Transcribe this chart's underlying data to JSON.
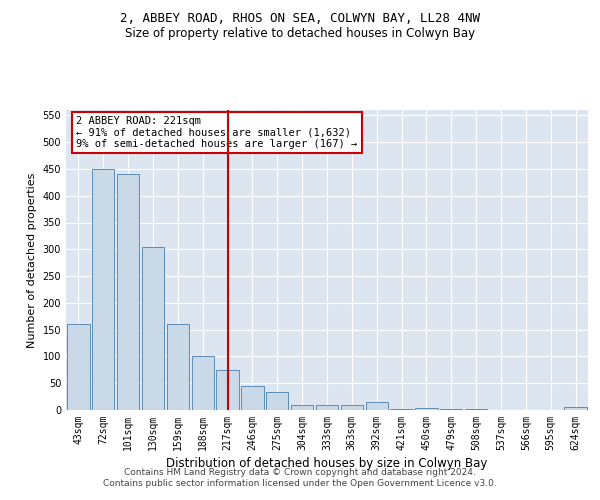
{
  "title": "2, ABBEY ROAD, RHOS ON SEA, COLWYN BAY, LL28 4NW",
  "subtitle": "Size of property relative to detached houses in Colwyn Bay",
  "xlabel": "Distribution of detached houses by size in Colwyn Bay",
  "ylabel": "Number of detached properties",
  "categories": [
    "43sqm",
    "72sqm",
    "101sqm",
    "130sqm",
    "159sqm",
    "188sqm",
    "217sqm",
    "246sqm",
    "275sqm",
    "304sqm",
    "333sqm",
    "363sqm",
    "392sqm",
    "421sqm",
    "450sqm",
    "479sqm",
    "508sqm",
    "537sqm",
    "566sqm",
    "595sqm",
    "624sqm"
  ],
  "values": [
    160,
    450,
    440,
    305,
    160,
    100,
    75,
    45,
    33,
    10,
    10,
    10,
    15,
    1,
    3,
    1,
    1,
    0,
    0,
    0,
    5
  ],
  "bar_color": "#c9d9e8",
  "bar_edge_color": "#5b8db8",
  "vline_x_index": 6,
  "vline_color": "#cc0000",
  "annotation_text": "2 ABBEY ROAD: 221sqm\n← 91% of detached houses are smaller (1,632)\n9% of semi-detached houses are larger (167) →",
  "annotation_box_color": "#ffffff",
  "annotation_box_edge": "#cc0000",
  "ylim": [
    0,
    560
  ],
  "yticks": [
    0,
    50,
    100,
    150,
    200,
    250,
    300,
    350,
    400,
    450,
    500,
    550
  ],
  "bg_color": "#dde6f0",
  "footer": "Contains HM Land Registry data © Crown copyright and database right 2024.\nContains public sector information licensed under the Open Government Licence v3.0.",
  "title_fontsize": 9,
  "subtitle_fontsize": 8.5,
  "xlabel_fontsize": 8.5,
  "ylabel_fontsize": 8,
  "tick_fontsize": 7,
  "annotation_fontsize": 7.5,
  "footer_fontsize": 6.5
}
